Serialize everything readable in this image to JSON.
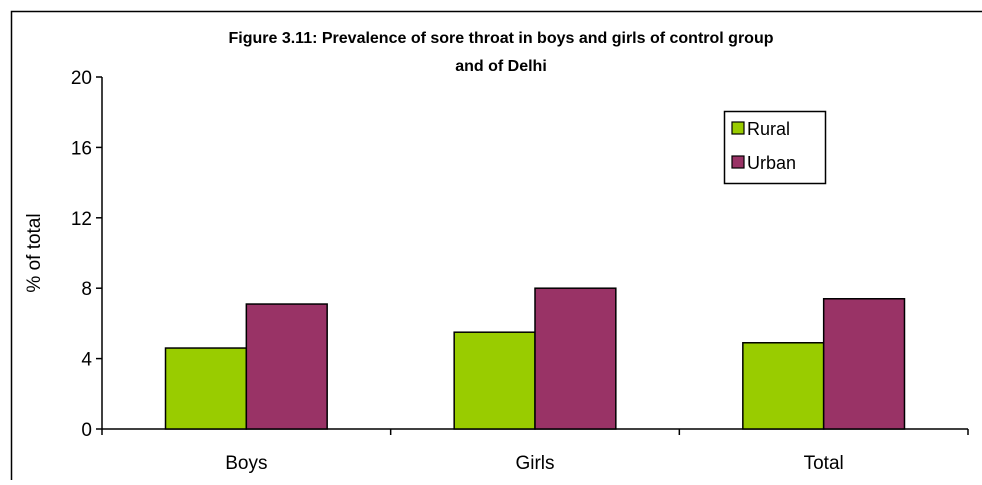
{
  "chart_data": {
    "type": "bar",
    "title_lines": [
      "Figure 3.11: Prevalence of sore throat in boys and girls of control group",
      "and of Delhi"
    ],
    "xlabel": "",
    "ylabel": "% of total",
    "categories": [
      "Boys",
      "Girls",
      "Total"
    ],
    "series": [
      {
        "name": "Rural",
        "values": [
          4.6,
          5.5,
          4.9
        ],
        "color": "#99cc00"
      },
      {
        "name": "Urban",
        "values": [
          7.1,
          8.0,
          7.4
        ],
        "color": "#993366"
      }
    ],
    "ylim": [
      0,
      20
    ],
    "yticks": [
      0,
      4,
      8,
      12,
      16,
      20
    ],
    "grid": false,
    "legend_position": "top-right"
  }
}
